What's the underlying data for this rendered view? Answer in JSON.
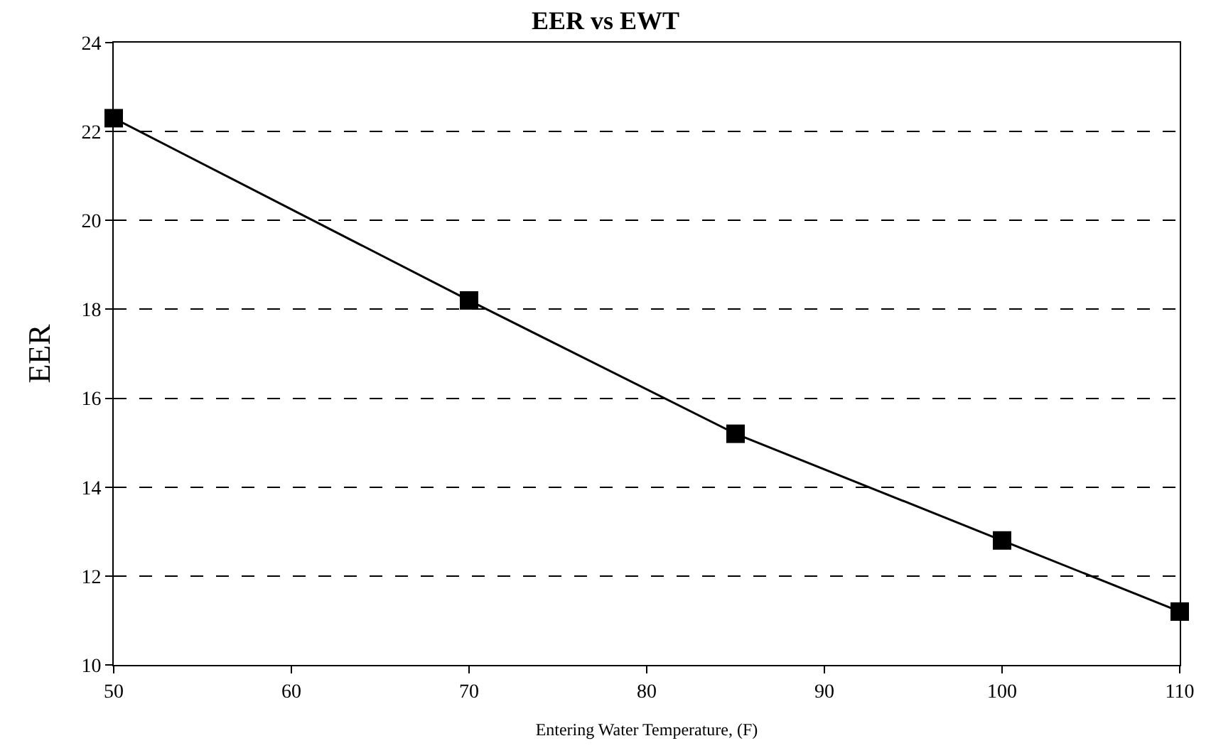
{
  "chart_data": {
    "type": "line",
    "title": "EER vs EWT",
    "xlabel": "Entering Water Temperature, (F)",
    "ylabel": "EER",
    "x": [
      50,
      70,
      85,
      100,
      110
    ],
    "series": [
      {
        "color": "#000000",
        "values": [
          22.3,
          18.2,
          15.2,
          12.8,
          11.2
        ]
      }
    ],
    "xlim": [
      50,
      110
    ],
    "xticks": [
      50,
      60,
      70,
      80,
      90,
      100,
      110
    ],
    "ylim": [
      10,
      24
    ],
    "yticks": [
      10,
      12,
      14,
      16,
      18,
      20,
      22,
      24
    ],
    "grid": "y",
    "legend": false,
    "marker": "square",
    "line_style": "solid"
  }
}
